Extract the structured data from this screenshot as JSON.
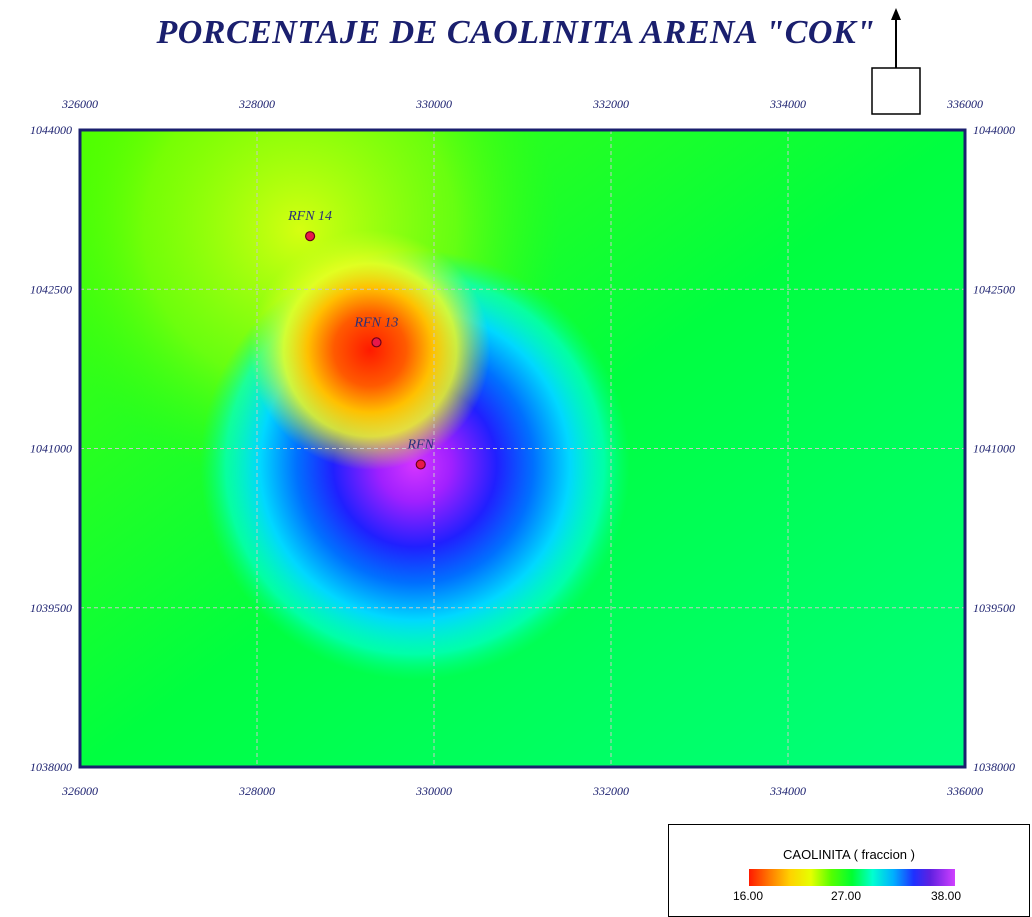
{
  "title": "PORCENTAJE DE CAOLINITA ARENA \"COK\"",
  "map": {
    "x_ticks": [
      "326000",
      "328000",
      "330000",
      "332000",
      "334000",
      "336000"
    ],
    "y_ticks": [
      "1044000",
      "1042500",
      "1041000",
      "1039500",
      "1038000"
    ],
    "x_range": [
      326000,
      336000
    ],
    "y_range": [
      1038000,
      1044000
    ],
    "wells": [
      {
        "name": "RFN 14",
        "x": 328600,
        "y": 1043000
      },
      {
        "name": "RFN 13",
        "x": 329350,
        "y": 1042000
      },
      {
        "name": "RFN",
        "x": 329850,
        "y": 1040850
      }
    ],
    "grid_color": "#c8c8c8",
    "frame_color": "#1a1f6e"
  },
  "legend": {
    "title": "CAOLINITA ( fraccion )",
    "min_label": "16.00",
    "mid_label": "27.00",
    "max_label": "38.00"
  }
}
